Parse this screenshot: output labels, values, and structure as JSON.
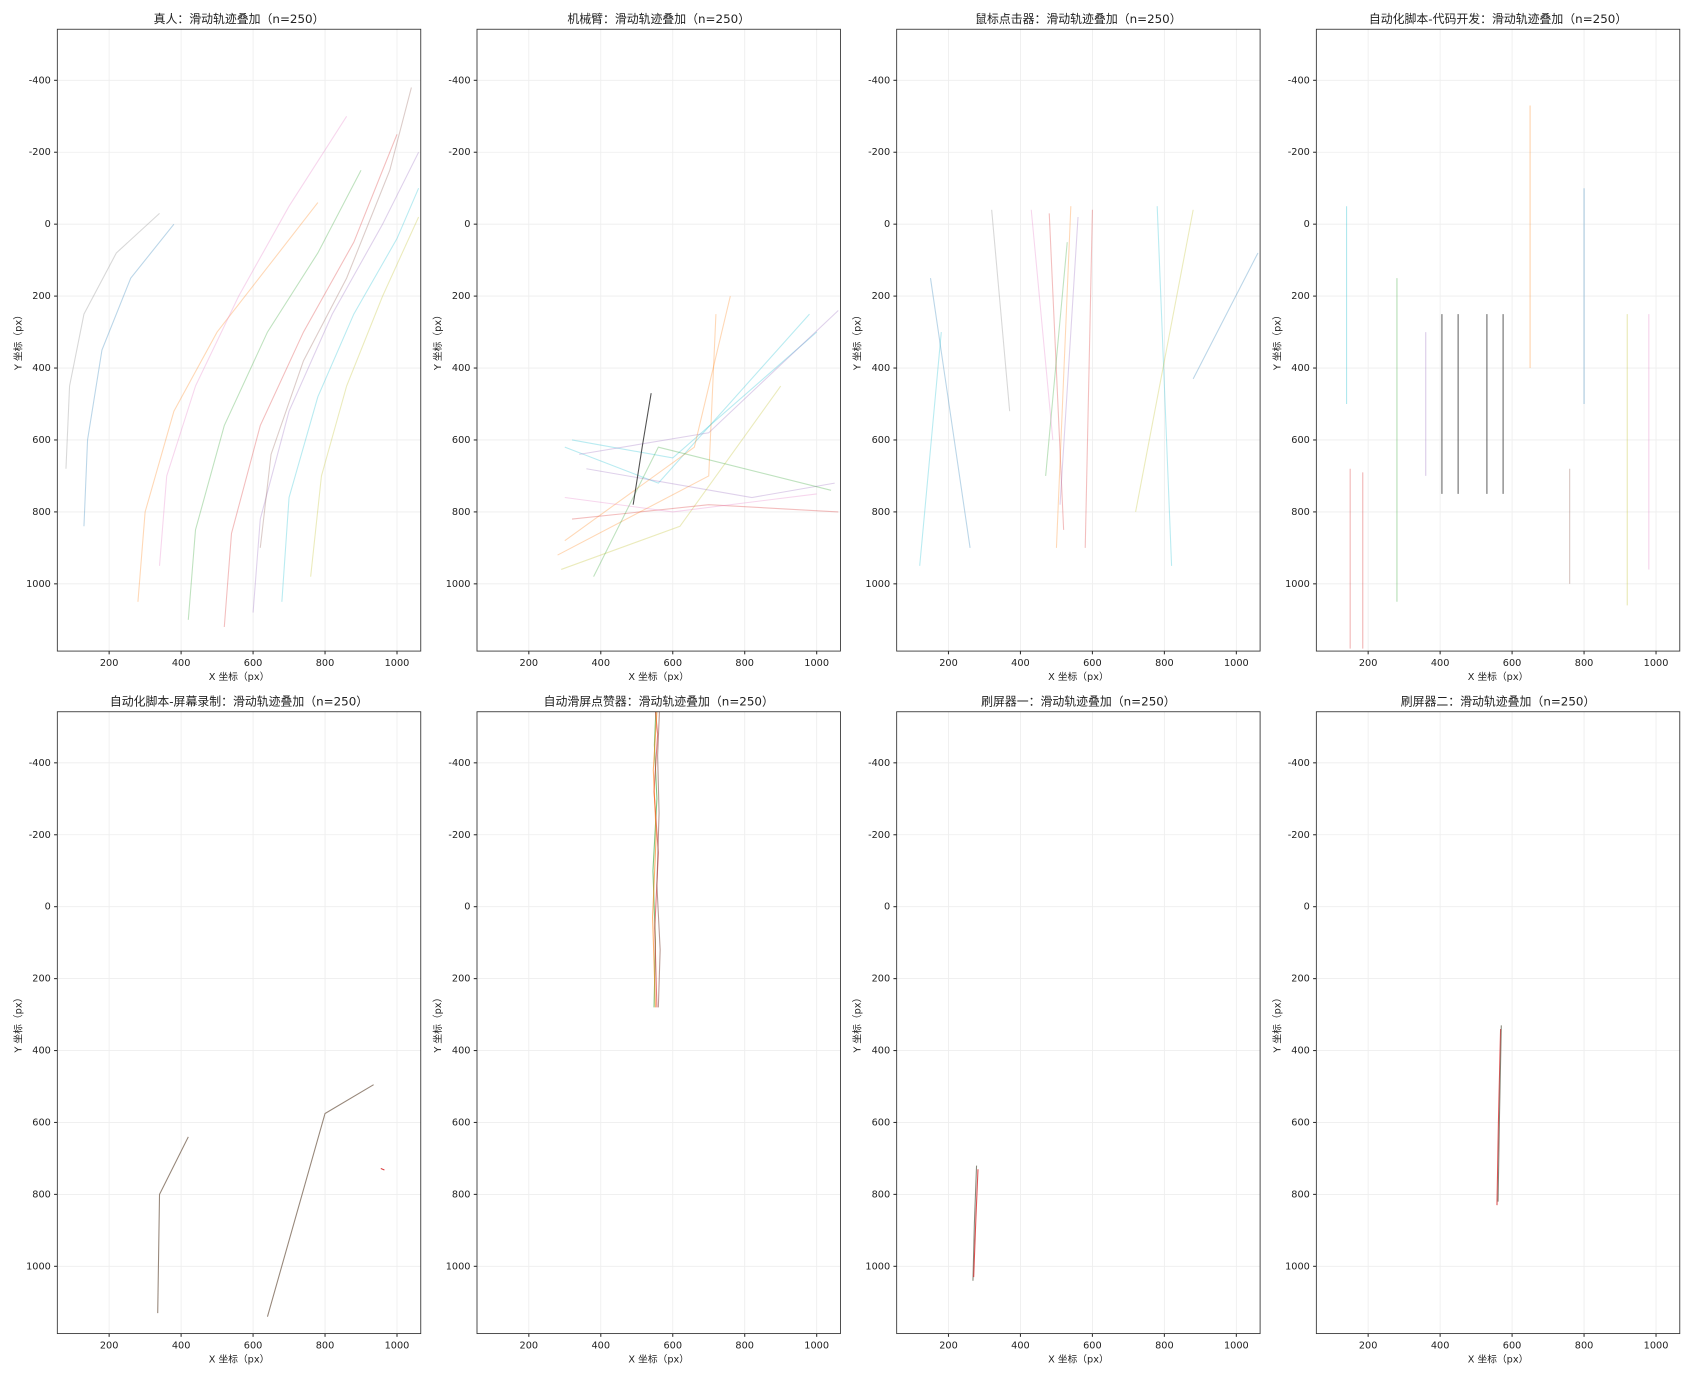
{
  "chart_data": [
    {
      "type": "line",
      "title": "真人：滑动轨迹叠加（n=250）",
      "xlabel": "X 坐标（px）",
      "ylabel": "Y 坐标（px）",
      "xlim": [
        56,
        1066
      ],
      "ylim": [
        -542,
        1187
      ],
      "y_inverted": true,
      "xticks": [
        200,
        400,
        600,
        800,
        1000
      ],
      "yticks": [
        -400,
        -200,
        0,
        200,
        400,
        600,
        800,
        1000
      ],
      "grid": true,
      "alpha": 0.3,
      "series": [
        {
          "color": "#1f77b4",
          "x": [
            130,
            140,
            180,
            260,
            380
          ],
          "y": [
            840,
            600,
            350,
            150,
            0
          ]
        },
        {
          "color": "#7f7f7f",
          "x": [
            80,
            90,
            130,
            220,
            340
          ],
          "y": [
            680,
            450,
            250,
            80,
            -30
          ]
        },
        {
          "color": "#ff7f0e",
          "x": [
            280,
            300,
            380,
            500,
            640,
            780
          ],
          "y": [
            1050,
            800,
            520,
            300,
            120,
            -60
          ]
        },
        {
          "color": "#2ca02c",
          "x": [
            420,
            440,
            520,
            640,
            780,
            900
          ],
          "y": [
            1100,
            850,
            560,
            300,
            80,
            -150
          ]
        },
        {
          "color": "#d62728",
          "x": [
            520,
            540,
            620,
            740,
            880,
            1000
          ],
          "y": [
            1120,
            860,
            560,
            300,
            50,
            -250
          ]
        },
        {
          "color": "#9467bd",
          "x": [
            600,
            620,
            700,
            820,
            960,
            1060
          ],
          "y": [
            1080,
            820,
            520,
            250,
            0,
            -200
          ]
        },
        {
          "color": "#17becf",
          "x": [
            680,
            700,
            780,
            880,
            1000,
            1060
          ],
          "y": [
            1050,
            760,
            480,
            250,
            40,
            -100
          ]
        },
        {
          "color": "#bcbd22",
          "x": [
            760,
            790,
            860,
            960,
            1060
          ],
          "y": [
            980,
            700,
            450,
            200,
            -20
          ]
        },
        {
          "color": "#e377c2",
          "x": [
            340,
            360,
            440,
            560,
            700,
            860
          ],
          "y": [
            950,
            700,
            450,
            200,
            -50,
            -300
          ]
        },
        {
          "color": "#8c564b",
          "x": [
            620,
            650,
            740,
            860,
            980,
            1040
          ],
          "y": [
            900,
            640,
            380,
            150,
            -150,
            -380
          ]
        }
      ]
    },
    {
      "type": "line",
      "title": "机械臂：滑动轨迹叠加（n=250）",
      "xlabel": "X 坐标（px）",
      "ylabel": "Y 坐标（px）",
      "xlim": [
        56,
        1066
      ],
      "ylim": [
        -542,
        1187
      ],
      "y_inverted": true,
      "xticks": [
        200,
        400,
        600,
        800,
        1000
      ],
      "yticks": [
        -400,
        -200,
        0,
        200,
        400,
        600,
        800,
        1000
      ],
      "grid": true,
      "alpha": 0.3,
      "series": [
        {
          "color": "#17becf",
          "x": [
            320,
            600,
            1000
          ],
          "y": [
            600,
            650,
            300
          ]
        },
        {
          "color": "#17becf",
          "x": [
            300,
            560,
            980
          ],
          "y": [
            620,
            720,
            250
          ]
        },
        {
          "color": "#9467bd",
          "x": [
            340,
            700,
            1060
          ],
          "y": [
            640,
            580,
            240
          ]
        },
        {
          "color": "#9467bd",
          "x": [
            360,
            820,
            1050
          ],
          "y": [
            680,
            760,
            720
          ]
        },
        {
          "color": "#ff7f0e",
          "x": [
            280,
            700,
            720
          ],
          "y": [
            920,
            700,
            250
          ]
        },
        {
          "color": "#ff7f0e",
          "x": [
            300,
            660,
            760
          ],
          "y": [
            880,
            620,
            200
          ]
        },
        {
          "color": "#bcbd22",
          "x": [
            290,
            620,
            900
          ],
          "y": [
            960,
            840,
            450
          ]
        },
        {
          "color": "#d62728",
          "x": [
            320,
            700,
            1060
          ],
          "y": [
            820,
            780,
            800
          ]
        },
        {
          "color": "#2ca02c",
          "x": [
            380,
            560,
            1040
          ],
          "y": [
            980,
            620,
            740
          ]
        },
        {
          "color": "#e377c2",
          "x": [
            300,
            600,
            1000
          ],
          "y": [
            760,
            800,
            750
          ]
        },
        {
          "color": "#333333",
          "alpha": 0.85,
          "x": [
            490,
            515,
            540
          ],
          "y": [
            780,
            620,
            470
          ]
        }
      ]
    },
    {
      "type": "line",
      "title": "鼠标点击器：滑动轨迹叠加（n=250）",
      "xlabel": "X 坐标（px）",
      "ylabel": "Y 坐标（px）",
      "xlim": [
        56,
        1066
      ],
      "ylim": [
        -542,
        1187
      ],
      "y_inverted": true,
      "xticks": [
        200,
        400,
        600,
        800,
        1000
      ],
      "yticks": [
        -400,
        -200,
        0,
        200,
        400,
        600,
        800,
        1000
      ],
      "grid": true,
      "alpha": 0.3,
      "series": [
        {
          "color": "#1f77b4",
          "x": [
            150,
            260
          ],
          "y": [
            150,
            900
          ]
        },
        {
          "color": "#17becf",
          "x": [
            180,
            120
          ],
          "y": [
            300,
            950
          ]
        },
        {
          "color": "#d62728",
          "x": [
            480,
            520
          ],
          "y": [
            -30,
            850
          ]
        },
        {
          "color": "#ff7f0e",
          "x": [
            500,
            540
          ],
          "y": [
            900,
            -50
          ]
        },
        {
          "color": "#2ca02c",
          "x": [
            530,
            470
          ],
          "y": [
            50,
            700
          ]
        },
        {
          "color": "#9467bd",
          "x": [
            560,
            510
          ],
          "y": [
            -20,
            780
          ]
        },
        {
          "color": "#e377c2",
          "x": [
            430,
            490
          ],
          "y": [
            -40,
            600
          ]
        },
        {
          "color": "#17becf",
          "x": [
            780,
            820
          ],
          "y": [
            -50,
            950
          ]
        },
        {
          "color": "#bcbd22",
          "x": [
            880,
            720
          ],
          "y": [
            -40,
            800
          ]
        },
        {
          "color": "#1f77b4",
          "x": [
            1060,
            880
          ],
          "y": [
            80,
            430
          ]
        },
        {
          "color": "#7f7f7f",
          "x": [
            320,
            370
          ],
          "y": [
            -40,
            520
          ]
        },
        {
          "color": "#d62728",
          "x": [
            600,
            580
          ],
          "y": [
            -40,
            900
          ]
        }
      ]
    },
    {
      "type": "line",
      "title": "自动化脚本-代码开发：滑动轨迹叠加（n=250）",
      "xlabel": "X 坐标（px）",
      "ylabel": "Y 坐标（px）",
      "xlim": [
        56,
        1066
      ],
      "ylim": [
        -542,
        1187
      ],
      "y_inverted": true,
      "xticks": [
        200,
        400,
        600,
        800,
        1000
      ],
      "yticks": [
        -400,
        -200,
        0,
        200,
        400,
        600,
        800,
        1000
      ],
      "grid": true,
      "alpha": 0.35,
      "series": [
        {
          "color": "#d62728",
          "x": [
            150,
            150
          ],
          "y": [
            680,
            1180
          ]
        },
        {
          "color": "#d62728",
          "x": [
            185,
            185
          ],
          "y": [
            690,
            1180
          ]
        },
        {
          "color": "#17becf",
          "x": [
            140,
            140
          ],
          "y": [
            -50,
            500
          ]
        },
        {
          "color": "#2ca02c",
          "x": [
            280,
            280
          ],
          "y": [
            150,
            1050
          ]
        },
        {
          "color": "#9467bd",
          "x": [
            360,
            360
          ],
          "y": [
            300,
            700
          ]
        },
        {
          "color": "#ff7f0e",
          "x": [
            650,
            650
          ],
          "y": [
            -330,
            400
          ]
        },
        {
          "color": "#1f77b4",
          "x": [
            800,
            800
          ],
          "y": [
            -100,
            500
          ]
        },
        {
          "color": "#e377c2",
          "x": [
            980,
            980
          ],
          "y": [
            250,
            960
          ]
        },
        {
          "color": "#8c564b",
          "x": [
            760,
            760
          ],
          "y": [
            680,
            1000
          ]
        },
        {
          "color": "#bcbd22",
          "x": [
            920,
            920
          ],
          "y": [
            250,
            1060
          ]
        },
        {
          "color": "#444444",
          "alpha": 0.8,
          "x": [
            405,
            405
          ],
          "y": [
            250,
            750
          ]
        },
        {
          "color": "#444444",
          "alpha": 0.8,
          "x": [
            450,
            450
          ],
          "y": [
            250,
            750
          ]
        },
        {
          "color": "#444444",
          "alpha": 0.8,
          "x": [
            530,
            530
          ],
          "y": [
            250,
            750
          ]
        },
        {
          "color": "#444444",
          "alpha": 0.8,
          "x": [
            575,
            575
          ],
          "y": [
            250,
            750
          ]
        }
      ]
    },
    {
      "type": "line",
      "title": "自动化脚本-屏幕录制：滑动轨迹叠加（n=250）",
      "xlabel": "X 坐标（px）",
      "ylabel": "Y 坐标（px）",
      "xlim": [
        56,
        1066
      ],
      "ylim": [
        -542,
        1187
      ],
      "y_inverted": true,
      "xticks": [
        200,
        400,
        600,
        800,
        1000
      ],
      "yticks": [
        -400,
        -200,
        0,
        200,
        400,
        600,
        800,
        1000
      ],
      "grid": true,
      "alpha": 0.9,
      "series": [
        {
          "color": "#8c7a6b",
          "x": [
            335,
            340,
            420
          ],
          "y": [
            1130,
            800,
            640
          ]
        },
        {
          "color": "#8c7a6b",
          "x": [
            640,
            800,
            935
          ],
          "y": [
            1140,
            575,
            495
          ]
        },
        {
          "color": "#d62728",
          "x": [
            955,
            965
          ],
          "y": [
            728,
            732
          ]
        }
      ]
    },
    {
      "type": "line",
      "title": "自动滑屏点赞器：滑动轨迹叠加（n=250）",
      "xlabel": "X 坐标（px）",
      "ylabel": "Y 坐标（px）",
      "xlim": [
        56,
        1066
      ],
      "ylim": [
        -542,
        1187
      ],
      "y_inverted": true,
      "xticks": [
        200,
        400,
        600,
        800,
        1000
      ],
      "yticks": [
        -400,
        -200,
        0,
        200,
        400,
        600,
        800,
        1000
      ],
      "grid": true,
      "alpha": 0.6,
      "series": [
        {
          "color": "#2ca02c",
          "x": [
            548,
            552,
            545,
            556,
            549,
            553
          ],
          "y": [
            280,
            100,
            -100,
            -300,
            -450,
            -542
          ]
        },
        {
          "color": "#d62728",
          "x": [
            556,
            550,
            560,
            548,
            558,
            552
          ],
          "y": [
            280,
            60,
            -150,
            -320,
            -480,
            -542
          ]
        },
        {
          "color": "#8c564b",
          "x": [
            560,
            565,
            556,
            562,
            558,
            563
          ],
          "y": [
            280,
            120,
            -60,
            -260,
            -420,
            -542
          ]
        },
        {
          "color": "#ff7f0e",
          "x": [
            552,
            544,
            554,
            546,
            556
          ],
          "y": [
            280,
            30,
            -200,
            -380,
            -542
          ]
        }
      ]
    },
    {
      "type": "line",
      "title": "刷屏器一：滑动轨迹叠加（n=250）",
      "xlabel": "X 坐标（px）",
      "ylabel": "Y 坐标（px）",
      "xlim": [
        56,
        1066
      ],
      "ylim": [
        -542,
        1187
      ],
      "y_inverted": true,
      "xticks": [
        200,
        400,
        600,
        800,
        1000
      ],
      "yticks": [
        -400,
        -200,
        0,
        200,
        400,
        600,
        800,
        1000
      ],
      "grid": true,
      "alpha": 0.8,
      "series": [
        {
          "color": "#6b6b5a",
          "x": [
            268,
            272,
            278
          ],
          "y": [
            1040,
            880,
            720
          ]
        },
        {
          "color": "#d62728",
          "x": [
            270,
            276,
            282
          ],
          "y": [
            1030,
            870,
            730
          ]
        }
      ]
    },
    {
      "type": "line",
      "title": "刷屏器二：滑动轨迹叠加（n=250）",
      "xlabel": "X 坐标（px）",
      "ylabel": "Y 坐标（px）",
      "xlim": [
        56,
        1066
      ],
      "ylim": [
        -542,
        1187
      ],
      "y_inverted": true,
      "xticks": [
        200,
        400,
        600,
        800,
        1000
      ],
      "yticks": [
        -400,
        -200,
        0,
        200,
        400,
        600,
        800,
        1000
      ],
      "grid": true,
      "alpha": 0.8,
      "series": [
        {
          "color": "#d62728",
          "x": [
            558,
            562,
            568
          ],
          "y": [
            830,
            600,
            340
          ]
        },
        {
          "color": "#6b6b5a",
          "x": [
            561,
            565,
            570
          ],
          "y": [
            820,
            580,
            330
          ]
        }
      ]
    }
  ]
}
